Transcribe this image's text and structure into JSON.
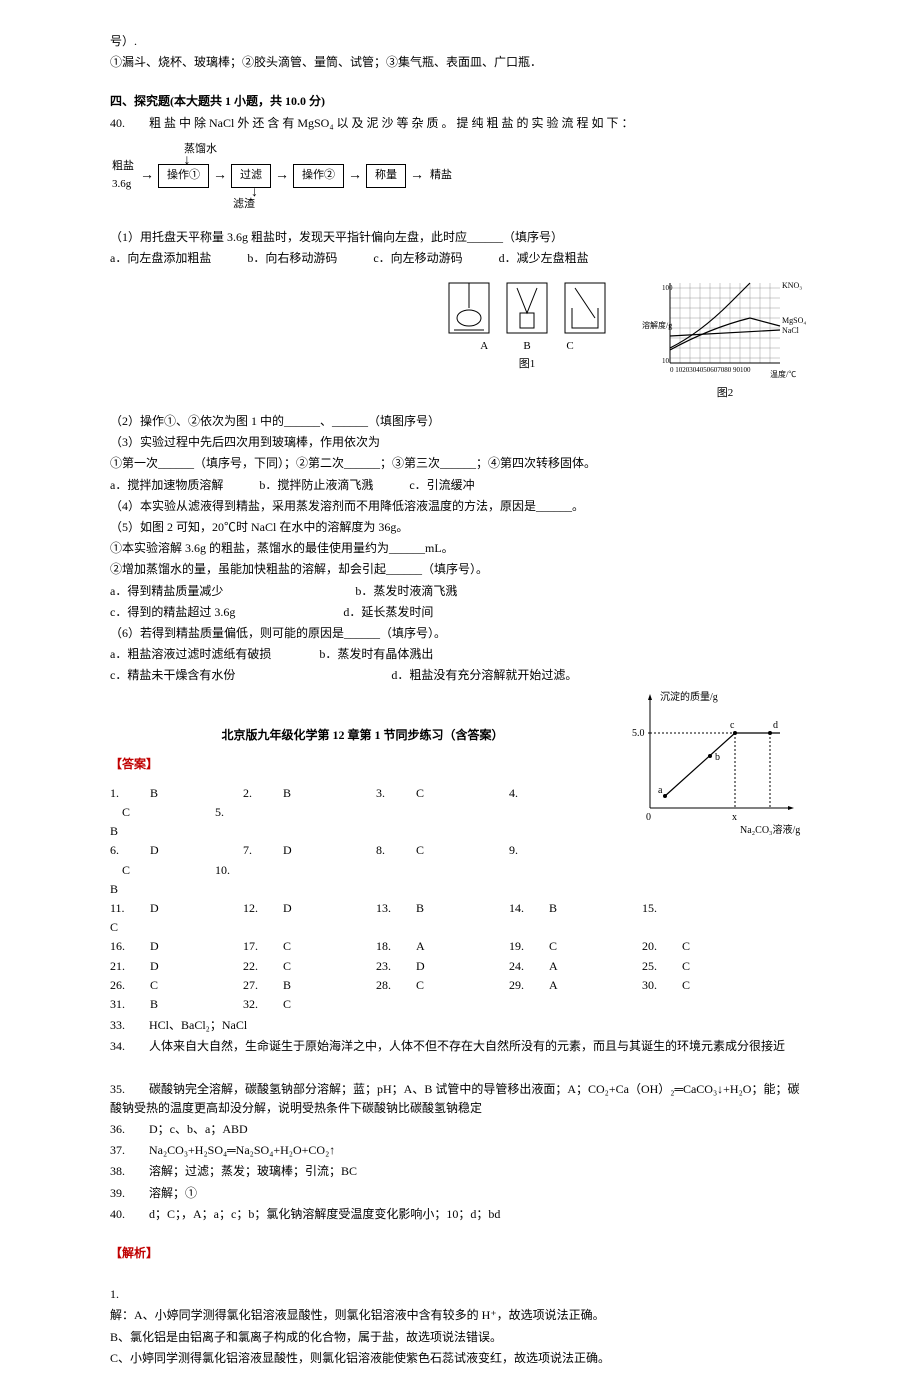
{
  "intro": {
    "line1": "号）.",
    "line2": "①漏斗、烧杯、玻璃棒；②胶头滴管、量筒、试管；③集气瓶、表面皿、广口瓶．"
  },
  "section4": {
    "title": "四、探究题(本大题共 1 小题，共 10.0 分)",
    "q40_intro": "40.　　粗 盐 中 除 NaCl 外 还 含 有 MgSO₄ 以 及 泥 沙 等 杂 质 。 提 纯 粗 盐 的 实 验 流 程 如 下 ：",
    "flowchart": {
      "top_label": "蒸馏水",
      "start_top": "粗盐",
      "start_bottom": "3.6g",
      "op1": "操作①",
      "filter": "过滤",
      "op2": "操作②",
      "weigh": "称量",
      "end": "精盐",
      "residue": "滤渣"
    },
    "q1": "（1）用托盘天平称量 3.6g 粗盐时，发现天平指针偏向左盘，此时应______（填序号）",
    "q1_opts": "a．向左盘添加粗盐　　　b．向右移动游码　　　c．向左移动游码　　　d．减少左盘粗盐",
    "figure1": {
      "labels": [
        "A",
        "B",
        "C"
      ],
      "caption": "图1"
    },
    "figure2": {
      "caption": "图2",
      "y_label": "溶解度/g",
      "x_label": "温度/℃",
      "y_max": 100,
      "y_step": 10,
      "x_ticks": "0 1020304050607080 90100",
      "curves": [
        "KNO₃",
        "MgSO₄",
        "NaCl"
      ],
      "colors": {
        "grid": "#999999",
        "line": "#000000",
        "bg": "#ffffff"
      }
    },
    "q2": "（2）操作①、②依次为图 1 中的______、______（填图序号）",
    "q3": "（3）实验过程中先后四次用到玻璃棒，作用依次为",
    "q3_sub": "①第一次______（填序号，下同）；②第二次______；③第三次______；④第四次转移固体。",
    "q3_opts": "a．搅拌加速物质溶解　　　b．搅拌防止液滴飞溅　　　c．引流缓冲",
    "q4": "（4）本实验从滤液得到精盐，采用蒸发溶剂而不用降低溶液温度的方法，原因是______。",
    "q5": "（5）如图 2 可知，20℃时 NaCl 在水中的溶解度为 36g。",
    "q5_1": "①本实验溶解 3.6g 的粗盐，蒸馏水的最佳使用量约为______mL。",
    "q5_2": "②增加蒸馏水的量，虽能加快粗盐的溶解，却会引起______（填序号）。",
    "q5_opts1": "a．得到精盐质量减少　　　　　　　　　　　b．蒸发时液滴飞溅",
    "q5_opts2": "c．得到的精盐超过 3.6g　　　　　　　　　d．延长蒸发时间",
    "q6": "（6）若得到精盐质量偏低，则可能的原因是______（填序号）。",
    "q6_opts1": "a．粗盐溶液过滤时滤纸有破损　　　　b．蒸发时有晶体溅出",
    "q6_opts2": "c．精盐未干燥含有水份　　　　　　　　　　　　　d．粗盐没有充分溶解就开始过滤。"
  },
  "answers_title": "北京版九年级化学第 12 章第 1 节同步练习（含答案）",
  "answers_header": "【答案】",
  "precipitate_graph": {
    "y_label": "沉淀的质量/g",
    "x_label": "Na₂CO₃溶液/g",
    "y_value": "5.0",
    "x_value": "x",
    "points": [
      "a",
      "b",
      "c",
      "d"
    ],
    "colors": {
      "axis": "#000000",
      "line": "#000000"
    }
  },
  "answer_rows": [
    [
      "1.",
      "B",
      "2.",
      "B",
      "3.",
      "C",
      "4.",
      "C",
      "5."
    ],
    [
      "B"
    ],
    [
      "6.",
      "D",
      "7.",
      "D",
      "8.",
      "C",
      "9.",
      "C",
      "10."
    ],
    [
      "B"
    ],
    [
      "11.",
      "D",
      "12.",
      "D",
      "13.",
      "B",
      "14.",
      "B",
      "15."
    ],
    [
      "C"
    ],
    [
      "16.",
      "D",
      "17.",
      "C",
      "18.",
      "A",
      "19.",
      "C",
      "20.",
      "C"
    ],
    [
      "21.",
      "D",
      "22.",
      "C",
      "23.",
      "D",
      "24.",
      "A",
      "25.",
      "C"
    ],
    [
      "26.",
      "C",
      "27.",
      "B",
      "28.",
      "C",
      "29.",
      "A",
      "30.",
      "C"
    ],
    [
      "31.",
      "B",
      "32.",
      "C"
    ]
  ],
  "text_answers": [
    "33.　　HCl、BaCl₂；NaCl",
    "34.　　人体来自大自然，生命诞生于原始海洋之中，人体不但不存在大自然所没有的元素，而且与其诞生的环境元素成分很接近",
    "",
    "35.　　碳酸钠完全溶解，碳酸氢钠部分溶解；蓝；pH；A、B 试管中的导管移出液面；A；CO₂+Ca（OH）₂═CaCO₃↓+H₂O；能；碳酸钠受热的温度更高却没分解，说明受热条件下碳酸钠比碳酸氢钠稳定",
    "36.　　D；c、b、a；ABD",
    "37.　　Na₂CO₃+H₂SO₄═Na₂SO₄+H₂O+CO₂↑",
    "38.　　溶解；过滤；蒸发；玻璃棒；引流；BC",
    "39.　　溶解；①",
    "40.　　d；C；，A；a；c；b；氯化钠溶解度受温度变化影响小；10；d；bd"
  ],
  "analysis_header": "【解析】",
  "analysis_lines": [
    "1.",
    "解：A、小婷同学测得氯化铝溶液显酸性，则氯化铝溶液中含有较多的 H⁺，故选项说法正确。",
    "B、氯化铝是由铝离子和氯离子构成的化合物，属于盐，故选项说法错误。",
    "C、小婷同学测得氯化铝溶液显酸性，则氯化铝溶液能使紫色石蕊试液变红，故选项说法正确。"
  ]
}
